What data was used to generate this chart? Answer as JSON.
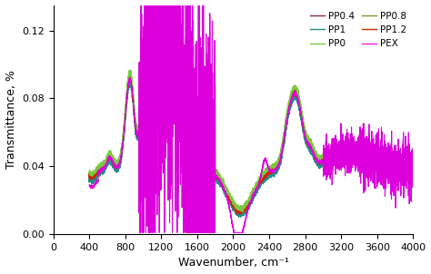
{
  "title": "",
  "xlabel": "Wavenumber, cm⁻¹",
  "ylabel": "Transmittance, %",
  "xlim": [
    0,
    4000
  ],
  "ylim": [
    0.0,
    0.135
  ],
  "yticks": [
    0.0,
    0.04,
    0.08,
    0.12
  ],
  "xticks": [
    0,
    400,
    800,
    1200,
    1600,
    2000,
    2400,
    2800,
    3200,
    3600,
    4000
  ],
  "series": {
    "PP0.4": {
      "color": "#7B2D52",
      "lw": 1.0
    },
    "PP0.8": {
      "color": "#8B8B2A",
      "lw": 1.0
    },
    "PP1": {
      "color": "#2A8B8B",
      "lw": 1.0
    },
    "PP1.2": {
      "color": "#CC2200",
      "lw": 1.0
    },
    "PP0": {
      "color": "#7DC840",
      "lw": 1.0
    },
    "PEX": {
      "color": "#DD00DD",
      "lw": 0.8
    }
  },
  "legend_ncol": 2,
  "legend_loc": "upper right",
  "background_color": "#ffffff"
}
